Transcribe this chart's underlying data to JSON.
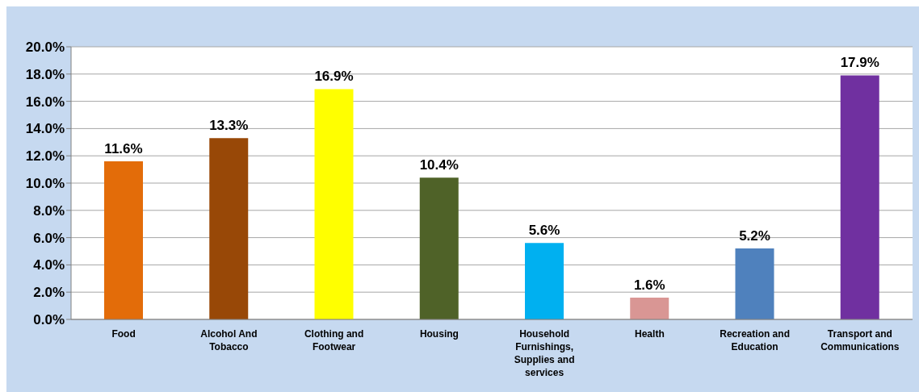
{
  "chart_data": {
    "type": "bar",
    "categories": [
      "Food",
      "Alcohol And Tobacco",
      "Clothing and Footwear",
      "Housing",
      "Household Furnishings, Supplies and services",
      "Health",
      "Recreation and Education",
      "Transport and Communications"
    ],
    "values": [
      11.6,
      13.3,
      16.9,
      10.4,
      5.6,
      1.6,
      5.2,
      17.9
    ],
    "colors": [
      "#e36c09",
      "#984807",
      "#ffff00",
      "#4f6228",
      "#00b0f0",
      "#d99694",
      "#4f81bd",
      "#7030a0"
    ],
    "value_labels": [
      "11.6%",
      "13.3%",
      "16.9%",
      "10.4%",
      "5.6%",
      "1.6%",
      "5.2%",
      "17.9%"
    ],
    "ylim": [
      0,
      20
    ],
    "yticks": [
      {
        "value": 0,
        "label": "0.0%"
      },
      {
        "value": 2,
        "label": "2.0%"
      },
      {
        "value": 4,
        "label": "4.0%"
      },
      {
        "value": 6,
        "label": "6.0%"
      },
      {
        "value": 8,
        "label": "8.0%"
      },
      {
        "value": 10,
        "label": "10.0%"
      },
      {
        "value": 12,
        "label": "12.0%"
      },
      {
        "value": 14,
        "label": "14.0%"
      },
      {
        "value": 16,
        "label": "16.0%"
      },
      {
        "value": 18,
        "label": "18.0%"
      },
      {
        "value": 20,
        "label": "20.0%"
      }
    ],
    "grid": "y"
  }
}
